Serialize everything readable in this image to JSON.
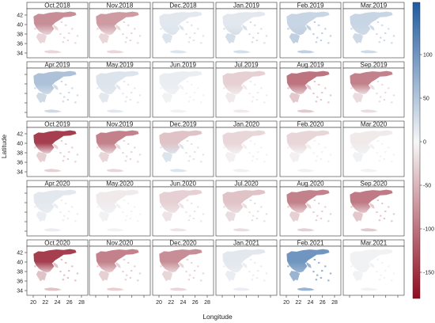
{
  "chart_data": {
    "type": "heatmap",
    "xlabel": "Longitude",
    "ylabel": "Latitude",
    "x_ticks": [
      20,
      22,
      24,
      26,
      28
    ],
    "y_ticks": [
      34,
      36,
      38,
      40,
      42
    ],
    "colorbar": {
      "ticks": [
        100,
        50,
        0,
        -50,
        -100,
        -150
      ],
      "range": [
        -180,
        160
      ],
      "colors": {
        "high": "#1f5b9e",
        "mid": "#f7f7f7",
        "low": "#8e0b1f"
      }
    },
    "panels": [
      {
        "title": "Oct.2018",
        "north": -80,
        "south": -25
      },
      {
        "title": "Nov.2018",
        "north": -70,
        "south": -25
      },
      {
        "title": "Dec.2018",
        "north": 15,
        "south": 20
      },
      {
        "title": "Jan.2019",
        "north": 15,
        "south": 25
      },
      {
        "title": "Feb.2019",
        "north": 35,
        "south": 40
      },
      {
        "title": "Mar.2019",
        "north": 35,
        "south": 30
      },
      {
        "title": "Apr.2019",
        "north": 55,
        "south": 30
      },
      {
        "title": "May.2019",
        "north": 20,
        "south": 15
      },
      {
        "title": "Jun.2019",
        "north": 10,
        "south": 5
      },
      {
        "title": "Jul.2019",
        "north": -30,
        "south": -10
      },
      {
        "title": "Aug.2019",
        "north": -100,
        "south": -35
      },
      {
        "title": "Sep.2019",
        "north": -90,
        "south": -20
      },
      {
        "title": "Oct.2019",
        "north": -140,
        "south": -30
      },
      {
        "title": "Nov.2019",
        "north": -90,
        "south": -25
      },
      {
        "title": "Dec.2019",
        "north": -40,
        "south": 20
      },
      {
        "title": "Jan.2020",
        "north": -25,
        "south": -5
      },
      {
        "title": "Feb.2020",
        "north": -25,
        "south": -5
      },
      {
        "title": "Mar.2020",
        "north": -10,
        "south": 5
      },
      {
        "title": "Apr.2020",
        "north": 15,
        "south": 10
      },
      {
        "title": "May.2020",
        "north": -10,
        "south": 5
      },
      {
        "title": "Jun.2020",
        "north": -30,
        "south": -15
      },
      {
        "title": "Jul.2020",
        "north": -40,
        "south": -20
      },
      {
        "title": "Aug.2020",
        "north": -90,
        "south": -30
      },
      {
        "title": "Sep.2020",
        "north": -95,
        "south": -35
      },
      {
        "title": "Oct.2020",
        "north": -140,
        "south": -40
      },
      {
        "title": "Nov.2020",
        "north": -90,
        "south": -30
      },
      {
        "title": "Dec.2020",
        "north": -80,
        "south": -25
      },
      {
        "title": "Jan.2021",
        "north": 15,
        "south": 10
      },
      {
        "title": "Feb.2021",
        "north": 100,
        "south": 70
      },
      {
        "title": "Mar.2021",
        "north": 5,
        "south": 5
      }
    ]
  }
}
